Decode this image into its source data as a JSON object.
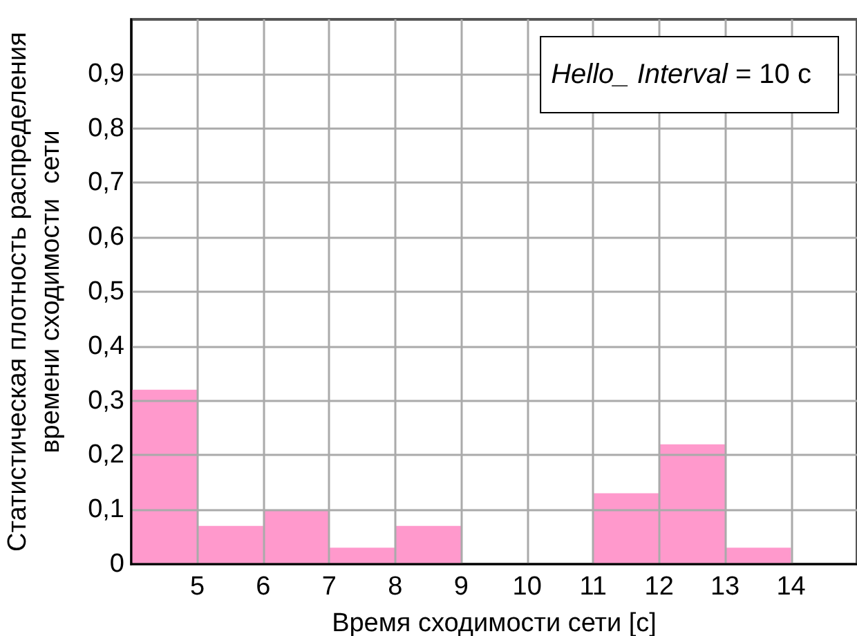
{
  "chart_data": {
    "type": "histogram",
    "xlabel": "Время сходимости сети [с]",
    "ylabel": "Статистическая плотность распределения\nвремени сходимости  сети",
    "annotations": [
      "Hello_ Interval = 10 с"
    ],
    "bins": [
      4,
      5,
      6,
      7,
      8,
      9,
      10,
      11,
      12,
      13,
      14,
      15
    ],
    "values": [
      0.32,
      0.07,
      0.1,
      0.03,
      0.07,
      0,
      0,
      0.13,
      0.22,
      0.03,
      0
    ],
    "color": "#ff99cc",
    "xlim": [
      4,
      15
    ],
    "xticks": [
      5,
      6,
      7,
      8,
      9,
      10,
      11,
      12,
      13,
      14
    ],
    "ylim": [
      0,
      1
    ],
    "yticks": [
      0,
      {
        "value": 0.1,
        "label": "0,1"
      },
      {
        "value": 0.2,
        "label": "0,2"
      },
      {
        "value": 0.3,
        "label": "0,3"
      },
      {
        "value": 0.4,
        "label": "0,4"
      },
      {
        "value": 0.5,
        "label": "0,5"
      },
      {
        "value": 0.6,
        "label": "0,6"
      },
      {
        "value": 0.7,
        "label": "0,7"
      },
      {
        "value": 0.8,
        "label": "0,8"
      },
      {
        "value": 0.9,
        "label": "0,9"
      }
    ],
    "grid": true
  }
}
